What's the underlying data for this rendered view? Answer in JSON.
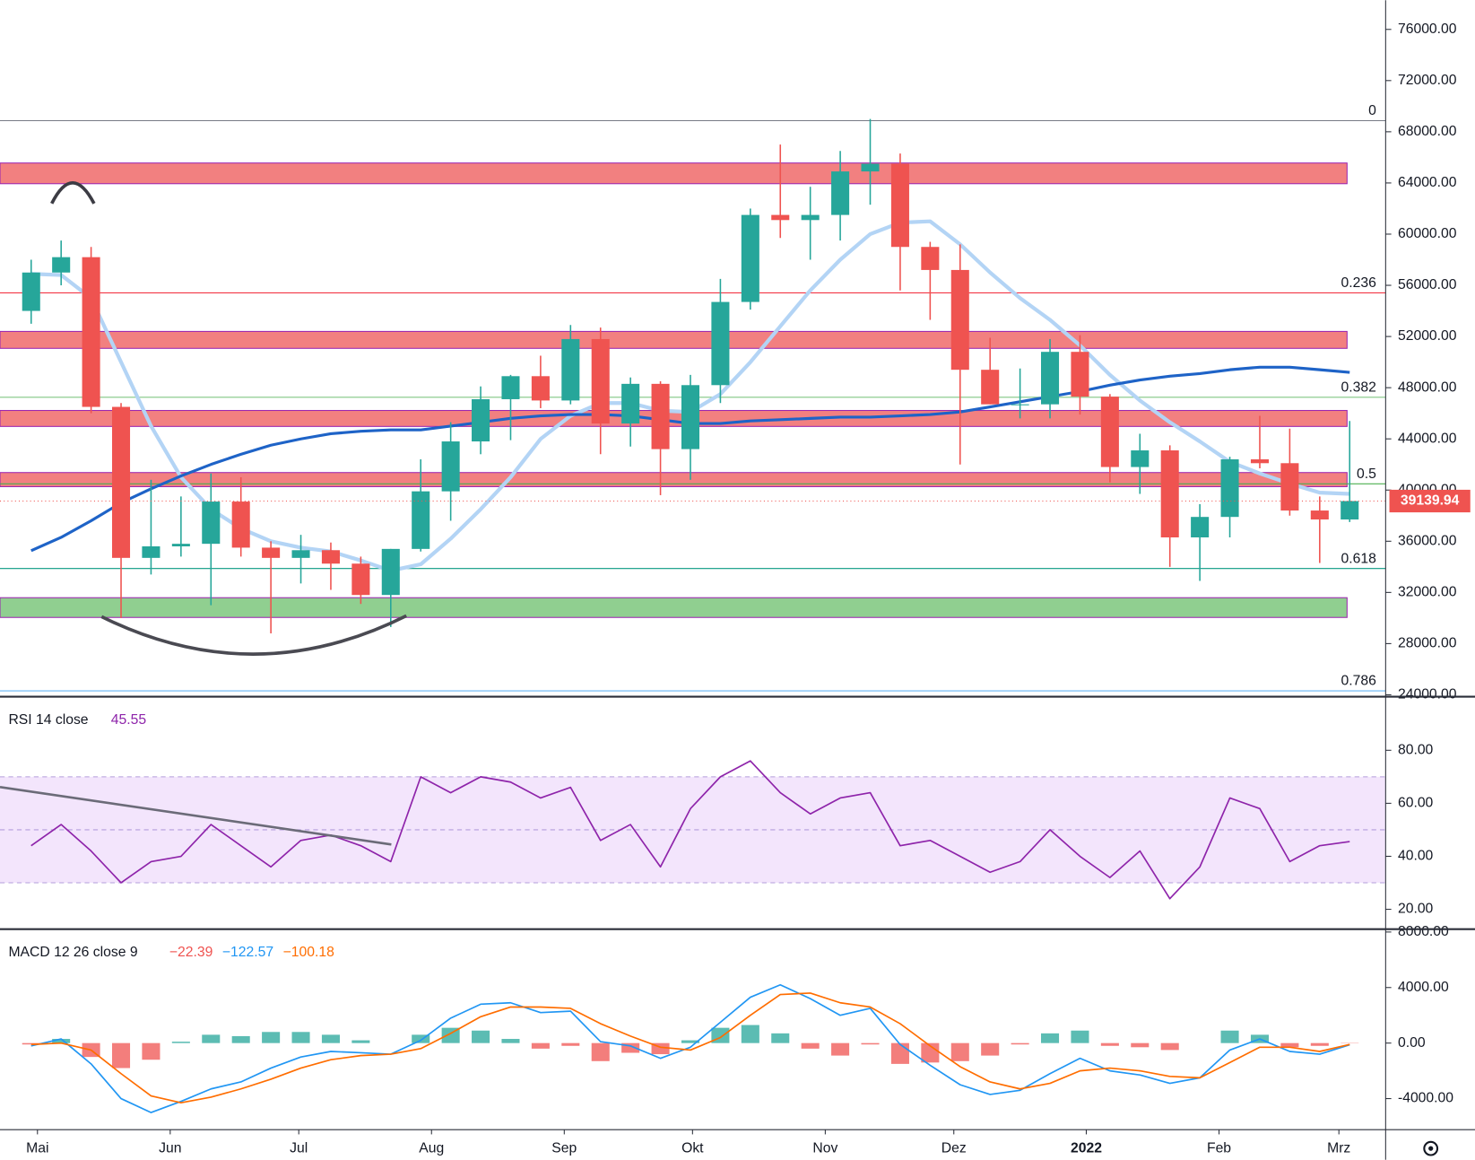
{
  "chart_data": [
    {
      "type": "candlestick",
      "categories": [
        null,
        null,
        null,
        null,
        null,
        null,
        null,
        null,
        null,
        null,
        null,
        null,
        null,
        null,
        null,
        null,
        null,
        null,
        null,
        null,
        null,
        null,
        null,
        null,
        null,
        null,
        null,
        null,
        null,
        null,
        null,
        null,
        null,
        null,
        null,
        null,
        null,
        null,
        null,
        null,
        null,
        null,
        null,
        null,
        null
      ],
      "open": [
        54000,
        57000,
        58200,
        46500,
        34700,
        35600,
        35800,
        39100,
        35500,
        34700,
        35300,
        34250,
        31800,
        35400,
        39900,
        43800,
        47100,
        48900,
        47000,
        51800,
        45200,
        48300,
        43200,
        48200,
        54700,
        61500,
        61100,
        61500,
        64900,
        65500,
        59000,
        57200,
        49400,
        46700,
        46700,
        50800,
        47300,
        41800,
        43100,
        36300,
        37900,
        42400,
        42100,
        38400,
        37700
      ],
      "high": [
        58000,
        59500,
        59000,
        46800,
        40800,
        39500,
        41300,
        41000,
        36000,
        36500,
        35900,
        34800,
        35400,
        42400,
        45300,
        48100,
        49000,
        50500,
        52900,
        52700,
        48800,
        48500,
        49000,
        56500,
        62000,
        67000,
        63700,
        66500,
        69000,
        66300,
        59400,
        59200,
        51900,
        49500,
        51800,
        52100,
        47500,
        44400,
        43500,
        38900,
        42600,
        45800,
        44800,
        39500,
        45400
      ],
      "low": [
        53000,
        56000,
        46000,
        30000,
        33400,
        34800,
        31000,
        34800,
        28800,
        32700,
        32200,
        31100,
        29300,
        35200,
        37600,
        42800,
        43900,
        46400,
        46700,
        42800,
        43400,
        39600,
        40800,
        46800,
        54100,
        59700,
        58000,
        59500,
        62300,
        55600,
        53300,
        42000,
        46700,
        45600,
        45600,
        45900,
        40600,
        39700,
        34000,
        32900,
        36300,
        41700,
        38000,
        34300,
        37500
      ],
      "close": [
        57000,
        58200,
        46500,
        34700,
        35600,
        35800,
        39100,
        35500,
        34700,
        35300,
        34250,
        31800,
        35400,
        39900,
        43800,
        47100,
        48900,
        47000,
        51800,
        45200,
        48300,
        43200,
        48200,
        54700,
        61500,
        61100,
        61500,
        64900,
        65500,
        59000,
        57200,
        49400,
        46700,
        46700,
        50800,
        47300,
        41800,
        43100,
        36300,
        37900,
        42400,
        42100,
        38400,
        37700,
        39139.94
      ],
      "up_color": "#26a69a",
      "down_color": "#ef5350",
      "series": [
        {
          "color": "#b3d4f5",
          "values": [
            56900,
            56800,
            55000,
            50000,
            45000,
            41000,
            38500,
            37000,
            36000,
            35500,
            35200,
            34500,
            33700,
            34200,
            36200,
            38500,
            41000,
            44000,
            45800,
            46800,
            46800,
            46200,
            46100,
            47500,
            50000,
            52800,
            55600,
            58000,
            60000,
            60900,
            61000,
            59200,
            57000,
            55000,
            53300,
            51300,
            49000,
            47000,
            45300,
            43800,
            42200,
            41300,
            40500,
            39800,
            39700
          ]
        },
        {
          "color": "#1e63c7",
          "values": [
            35260,
            36300,
            37600,
            39000,
            40100,
            41100,
            42000,
            42800,
            43500,
            44000,
            44400,
            44600,
            44700,
            44700,
            45000,
            45300,
            45600,
            45800,
            45900,
            45900,
            45800,
            45500,
            45200,
            45200,
            45400,
            45500,
            45600,
            45700,
            45700,
            45800,
            45900,
            46100,
            46500,
            46900,
            47300,
            47700,
            48200,
            48600,
            48900,
            49100,
            49400,
            49600,
            49600,
            49400,
            49200
          ]
        }
      ],
      "zones": [
        {
          "range": [
            63941,
            65559
          ],
          "color": "#f28080"
        },
        {
          "range": [
            51074,
            52397
          ],
          "color": "#f28080"
        },
        {
          "range": [
            44971,
            46221
          ],
          "color": "#f28080"
        },
        {
          "range": [
            40265,
            41368
          ],
          "color": "#f28080"
        },
        {
          "range": [
            30044,
            31588
          ],
          "color": "#90cf90"
        }
      ],
      "fib_levels": [
        {
          "ratio": 0,
          "price": 68870,
          "color": "#787b86"
        },
        {
          "ratio": 0.236,
          "price": 55412,
          "color": "#f23645"
        },
        {
          "ratio": 0.382,
          "price": 47250,
          "color": "#81c784"
        },
        {
          "ratio": 0.5,
          "price": 40485,
          "color": "#4caf50"
        },
        {
          "ratio": 0.618,
          "price": 33868,
          "color": "#089981"
        },
        {
          "ratio": 0.786,
          "price": 24309,
          "color": "#64b5f6"
        }
      ],
      "last_price": 39139.94,
      "xlim": [
        -1.04,
        45.2
      ],
      "xticks": [
        {
          "value": 0.21,
          "label": "Mai"
        },
        {
          "value": 4.64,
          "label": "Jun"
        },
        {
          "value": 8.93,
          "label": "Jul"
        },
        {
          "value": 13.36,
          "label": "Aug"
        },
        {
          "value": 17.79,
          "label": "Sep"
        },
        {
          "value": 22.07,
          "label": "Okt"
        },
        {
          "value": 26.5,
          "label": "Nov"
        },
        {
          "value": 30.79,
          "label": "Dez"
        },
        {
          "value": 35.21,
          "label": "2022"
        },
        {
          "value": 39.64,
          "label": "Feb"
        },
        {
          "value": 43.64,
          "label": "Mrz"
        }
      ],
      "ylim": [
        23850,
        78280
      ],
      "yticks": [
        {
          "value": 24000,
          "label": "24000.00"
        },
        {
          "value": 28000,
          "label": "28000.00"
        },
        {
          "value": 32000,
          "label": "32000.00"
        },
        {
          "value": 36000,
          "label": "36000.00"
        },
        {
          "value": 40000,
          "label": "40000.00"
        },
        {
          "value": 44000,
          "label": "44000.00"
        },
        {
          "value": 48000,
          "label": "48000.00"
        },
        {
          "value": 52000,
          "label": "52000.00"
        },
        {
          "value": 56000,
          "label": "56000.00"
        },
        {
          "value": 60000,
          "label": "60000.00"
        },
        {
          "value": 64000,
          "label": "64000.00"
        },
        {
          "value": 68000,
          "label": "68000.00"
        },
        {
          "value": 72000,
          "label": "72000.00"
        },
        {
          "value": 76000,
          "label": "76000.00"
        }
      ]
    },
    {
      "type": "line",
      "title": "RSI 14 close",
      "last_value": 45.55,
      "color": "#8e24aa",
      "values": [
        44,
        52,
        42,
        30,
        38,
        40,
        52,
        44,
        36,
        46,
        48,
        44,
        38,
        70,
        64,
        70,
        68,
        62,
        66,
        46,
        52,
        36,
        58,
        70,
        76,
        64,
        56,
        62,
        64,
        44,
        46,
        40,
        34,
        38,
        50,
        40,
        32,
        42,
        24,
        36,
        62,
        58,
        38,
        44,
        45.55
      ],
      "band": [
        30,
        70
      ],
      "midline": 50,
      "band_color": "#f3e5fc",
      "ylim": [
        12.5,
        99.5
      ],
      "yticks": [
        {
          "value": 20,
          "label": "20.00"
        },
        {
          "value": 40,
          "label": "40.00"
        },
        {
          "value": 60,
          "label": "60.00"
        },
        {
          "value": 80,
          "label": "80.00"
        }
      ]
    },
    {
      "type": "macd",
      "title": "MACD 12 26 close 9",
      "legend_values": [
        -22.39,
        -122.57,
        -100.18
      ],
      "legend_value_labels": [
        "−22.39",
        "−122.57",
        "−100.18"
      ],
      "legend_colors": [
        "#ef5350",
        "#2196f3",
        "#ff6d00"
      ],
      "macd": {
        "color": "#2196f3",
        "values": [
          -200,
          300,
          -1500,
          -4000,
          -5000,
          -4200,
          -3300,
          -2800,
          -1800,
          -1000,
          -600,
          -700,
          -800,
          200,
          1800,
          2800,
          2900,
          2200,
          2300,
          100,
          -200,
          -1100,
          -300,
          1500,
          3300,
          4200,
          3200,
          2000,
          2500,
          -100,
          -1600,
          -3000,
          -3700,
          -3400,
          -2200,
          -1100,
          -2000,
          -2300,
          -2900,
          -2500,
          -500,
          300,
          -600,
          -800,
          -122.57
        ]
      },
      "signal": {
        "color": "#ff6d00",
        "values": [
          -100,
          0,
          -500,
          -2200,
          -3800,
          -4300,
          -3900,
          -3300,
          -2600,
          -1800,
          -1200,
          -900,
          -800,
          -400,
          700,
          1900,
          2600,
          2600,
          2500,
          1400,
          500,
          -300,
          -500,
          400,
          2000,
          3500,
          3600,
          2900,
          2600,
          1400,
          -200,
          -1700,
          -2800,
          -3300,
          -2900,
          -2000,
          -1800,
          -2000,
          -2400,
          -2500,
          -1400,
          -300,
          -300,
          -600,
          -100.18
        ]
      },
      "histogram": {
        "up_color": "#26a69a",
        "down_color": "#ef5350",
        "values": [
          -100,
          300,
          -1000,
          -1800,
          -1200,
          100,
          600,
          500,
          800,
          800,
          600,
          200,
          0,
          600,
          1100,
          900,
          300,
          -400,
          -200,
          -1300,
          -700,
          -800,
          200,
          1100,
          1300,
          700,
          -400,
          -900,
          -100,
          -1500,
          -1400,
          -1300,
          -900,
          -100,
          700,
          900,
          -200,
          -300,
          -500,
          0,
          900,
          600,
          -300,
          -200,
          -22.39
        ]
      },
      "ylim": [
        -6237,
        8136
      ],
      "yticks": [
        {
          "value": -4000,
          "label": "-4000.00"
        },
        {
          "value": 0,
          "label": "0.00"
        },
        {
          "value": 4000,
          "label": "4000.00"
        },
        {
          "value": 8000,
          "label": "8000.00"
        }
      ]
    }
  ]
}
